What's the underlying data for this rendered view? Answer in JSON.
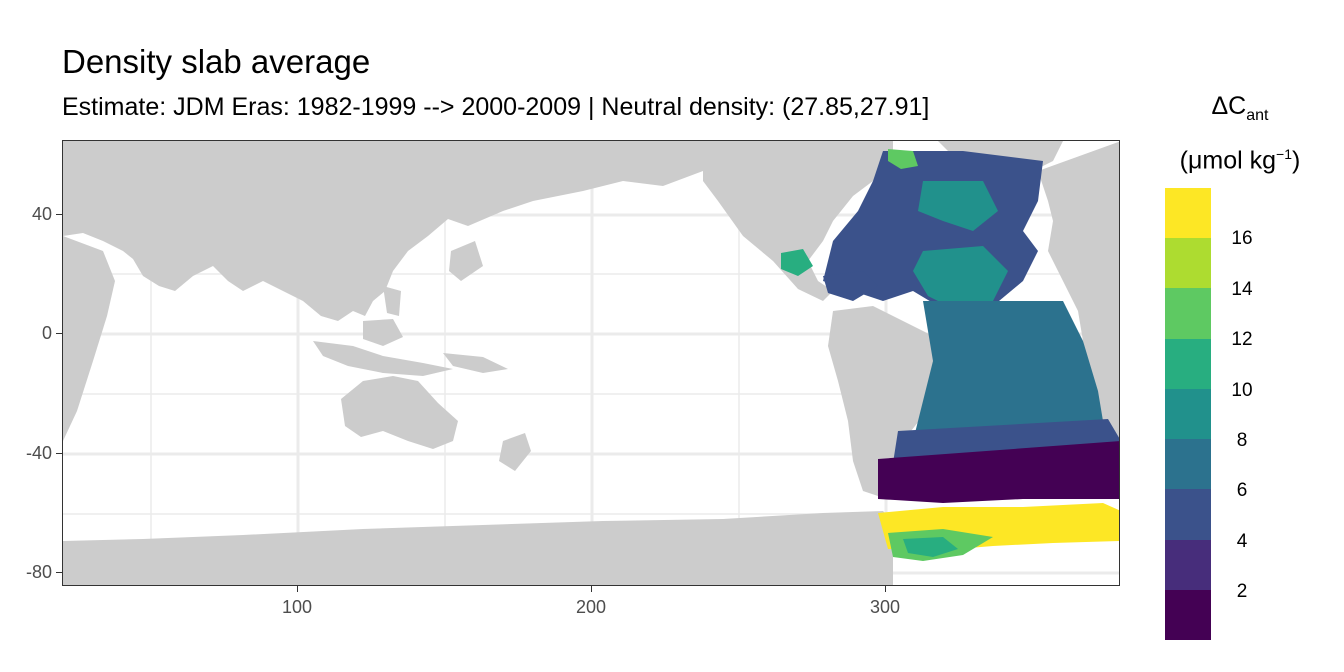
{
  "title": "Density slab average",
  "subtitle": "Estimate: JDM Eras: 1982-1999 --> 2000-2009 | Neutral density: (27.85,27.91]",
  "legend": {
    "title_main": "ΔC",
    "title_sub": "ant",
    "unit_prefix": "(μmol kg",
    "unit_sup": "−1",
    "unit_suffix": ")",
    "labels": [
      "16",
      "14",
      "12",
      "10",
      "8",
      "6",
      "4",
      "2"
    ],
    "colors": [
      "#fde725",
      "#addc30",
      "#5ec962",
      "#28ae80",
      "#21918c",
      "#2c728e",
      "#3b528b",
      "#472d7b",
      "#440154"
    ]
  },
  "axes": {
    "x_ticks": [
      "100",
      "200",
      "300"
    ],
    "y_ticks": [
      "40",
      "0",
      "-40",
      "-80"
    ],
    "x_range": [
      20,
      380
    ],
    "y_range": [
      -85,
      65
    ]
  },
  "colors": {
    "land": "#cccccc",
    "ocean": "#ffffff",
    "grid": "#ebebeb"
  }
}
